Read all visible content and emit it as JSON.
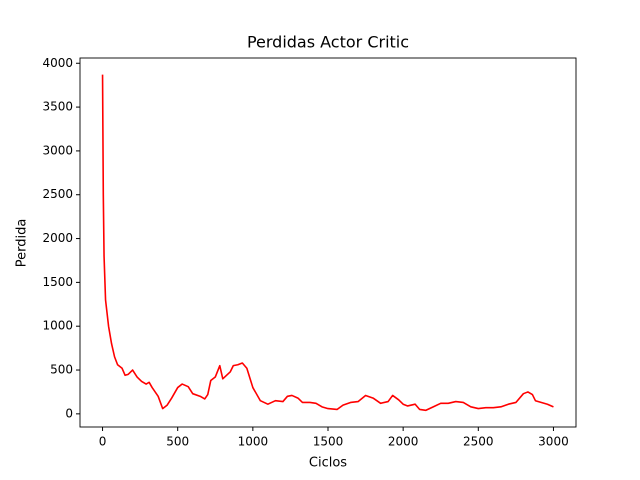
{
  "chart_data": {
    "type": "line",
    "title": "Perdidas Actor Critic",
    "x_label": "Ciclos",
    "y_label": "Perdida",
    "x": [
      0,
      5,
      10,
      20,
      40,
      60,
      80,
      100,
      130,
      150,
      170,
      200,
      230,
      260,
      290,
      310,
      330,
      370,
      400,
      430,
      460,
      500,
      530,
      570,
      600,
      650,
      680,
      700,
      720,
      750,
      780,
      800,
      850,
      870,
      900,
      930,
      960,
      1000,
      1050,
      1100,
      1150,
      1200,
      1230,
      1260,
      1300,
      1330,
      1380,
      1420,
      1460,
      1500,
      1560,
      1600,
      1650,
      1700,
      1750,
      1800,
      1850,
      1900,
      1930,
      1970,
      2000,
      2030,
      2080,
      2110,
      2150,
      2200,
      2250,
      2300,
      2350,
      2400,
      2450,
      2500,
      2550,
      2600,
      2650,
      2700,
      2750,
      2800,
      2830,
      2860,
      2880,
      2920,
      2960,
      3000
    ],
    "series": [
      {
        "name": "Perdida",
        "color": "#ff0000",
        "values": [
          3870,
          2500,
          1800,
          1300,
          1000,
          800,
          650,
          560,
          520,
          440,
          450,
          500,
          420,
          370,
          340,
          360,
          300,
          200,
          60,
          100,
          180,
          300,
          340,
          310,
          230,
          200,
          170,
          220,
          380,
          420,
          550,
          400,
          480,
          550,
          560,
          580,
          520,
          300,
          150,
          110,
          150,
          140,
          200,
          210,
          180,
          130,
          130,
          120,
          80,
          60,
          50,
          100,
          130,
          140,
          210,
          180,
          120,
          140,
          210,
          160,
          110,
          90,
          110,
          50,
          40,
          80,
          120,
          120,
          140,
          130,
          80,
          60,
          70,
          70,
          80,
          110,
          130,
          230,
          250,
          220,
          150,
          130,
          110,
          80
        ]
      }
    ],
    "xlim": [
      -150,
      3150
    ],
    "ylim": [
      -150,
      4060
    ],
    "xticks": [
      0,
      500,
      1000,
      1500,
      2000,
      2500,
      3000
    ],
    "yticks": [
      0,
      500,
      1000,
      1500,
      2000,
      2500,
      3000,
      3500,
      4000
    ]
  }
}
